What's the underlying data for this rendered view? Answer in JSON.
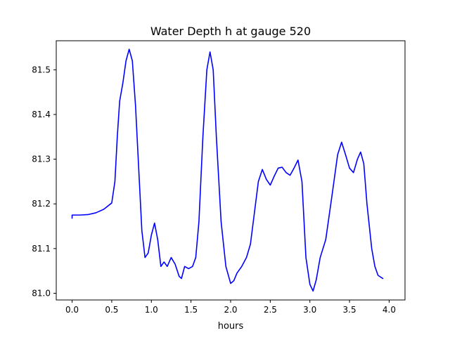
{
  "chart_data": {
    "type": "line",
    "title": "Water Depth h at gauge 520",
    "xlabel": "hours",
    "ylabel": "",
    "xlim": [
      -0.2,
      4.2
    ],
    "ylim": [
      80.985,
      81.565
    ],
    "xticks": [
      0.0,
      0.5,
      1.0,
      1.5,
      2.0,
      2.5,
      3.0,
      3.5,
      4.0
    ],
    "xtick_labels": [
      "0.0",
      "0.5",
      "1.0",
      "1.5",
      "2.0",
      "2.5",
      "3.0",
      "3.5",
      "4.0"
    ],
    "yticks": [
      81.0,
      81.1,
      81.2,
      81.3,
      81.4,
      81.5
    ],
    "ytick_labels": [
      "81.0",
      "81.1",
      "81.2",
      "81.3",
      "81.4",
      "81.5"
    ],
    "grid": false,
    "legend": "none",
    "series": [
      {
        "color": "#0000ff",
        "points": [
          [
            0.0,
            81.168
          ],
          [
            0.0,
            81.175
          ],
          [
            0.1,
            81.175
          ],
          [
            0.2,
            81.176
          ],
          [
            0.3,
            81.18
          ],
          [
            0.4,
            81.188
          ],
          [
            0.5,
            81.202
          ],
          [
            0.54,
            81.25
          ],
          [
            0.57,
            81.35
          ],
          [
            0.6,
            81.43
          ],
          [
            0.64,
            81.47
          ],
          [
            0.68,
            81.52
          ],
          [
            0.72,
            81.546
          ],
          [
            0.76,
            81.52
          ],
          [
            0.8,
            81.42
          ],
          [
            0.84,
            81.28
          ],
          [
            0.88,
            81.14
          ],
          [
            0.92,
            81.08
          ],
          [
            0.96,
            81.09
          ],
          [
            1.0,
            81.13
          ],
          [
            1.04,
            81.157
          ],
          [
            1.08,
            81.12
          ],
          [
            1.12,
            81.06
          ],
          [
            1.16,
            81.07
          ],
          [
            1.2,
            81.06
          ],
          [
            1.25,
            81.08
          ],
          [
            1.3,
            81.065
          ],
          [
            1.35,
            81.038
          ],
          [
            1.38,
            81.033
          ],
          [
            1.42,
            81.06
          ],
          [
            1.47,
            81.055
          ],
          [
            1.52,
            81.06
          ],
          [
            1.56,
            81.08
          ],
          [
            1.6,
            81.16
          ],
          [
            1.65,
            81.35
          ],
          [
            1.7,
            81.5
          ],
          [
            1.74,
            81.54
          ],
          [
            1.78,
            81.5
          ],
          [
            1.82,
            81.35
          ],
          [
            1.88,
            81.16
          ],
          [
            1.94,
            81.06
          ],
          [
            2.0,
            81.022
          ],
          [
            2.04,
            81.028
          ],
          [
            2.08,
            81.045
          ],
          [
            2.14,
            81.06
          ],
          [
            2.2,
            81.08
          ],
          [
            2.25,
            81.11
          ],
          [
            2.3,
            81.18
          ],
          [
            2.35,
            81.25
          ],
          [
            2.4,
            81.277
          ],
          [
            2.45,
            81.255
          ],
          [
            2.5,
            81.242
          ],
          [
            2.55,
            81.262
          ],
          [
            2.6,
            81.28
          ],
          [
            2.65,
            81.282
          ],
          [
            2.7,
            81.27
          ],
          [
            2.75,
            81.264
          ],
          [
            2.8,
            81.28
          ],
          [
            2.85,
            81.298
          ],
          [
            2.9,
            81.25
          ],
          [
            2.95,
            81.08
          ],
          [
            3.0,
            81.02
          ],
          [
            3.04,
            81.005
          ],
          [
            3.08,
            81.03
          ],
          [
            3.13,
            81.08
          ],
          [
            3.2,
            81.12
          ],
          [
            3.28,
            81.22
          ],
          [
            3.35,
            81.31
          ],
          [
            3.4,
            81.338
          ],
          [
            3.45,
            81.31
          ],
          [
            3.5,
            81.28
          ],
          [
            3.55,
            81.27
          ],
          [
            3.6,
            81.3
          ],
          [
            3.64,
            81.316
          ],
          [
            3.68,
            81.29
          ],
          [
            3.72,
            81.2
          ],
          [
            3.78,
            81.1
          ],
          [
            3.82,
            81.06
          ],
          [
            3.86,
            81.04
          ],
          [
            3.92,
            81.033
          ]
        ]
      }
    ]
  }
}
